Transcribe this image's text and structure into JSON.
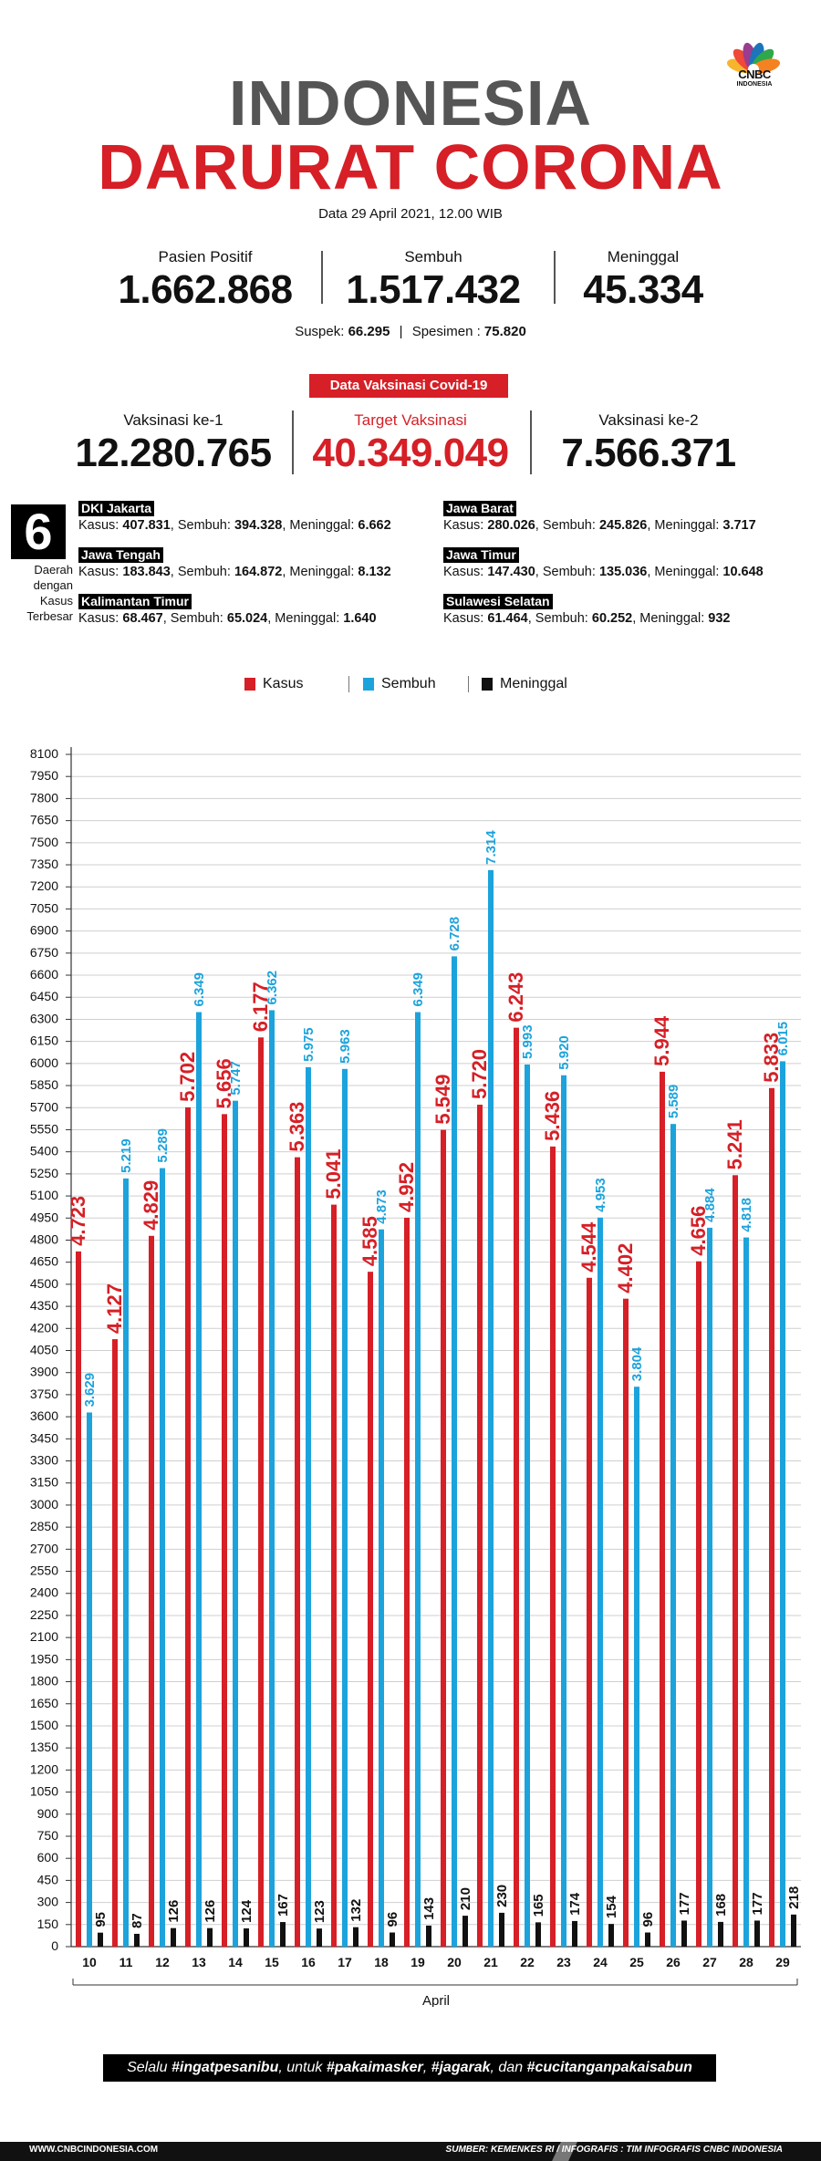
{
  "brand": {
    "name": "CNBC",
    "sub": "INDONESIA"
  },
  "header": {
    "title_line1": "INDONESIA",
    "title_line2": "DARURAT CORONA",
    "date": "Data 29 April 2021, 12.00 WIB"
  },
  "stats": [
    {
      "label": "Pasien Positif",
      "value": "1.662.868"
    },
    {
      "label": "Sembuh",
      "value": "1.517.432"
    },
    {
      "label": "Meninggal",
      "value": "45.334"
    }
  ],
  "suspek": {
    "label": "Suspek:",
    "value": "66.295",
    "sep": "|",
    "spesimen_label": "Spesimen :",
    "spesimen_value": "75.820"
  },
  "vaksinasi": {
    "badge": "Data Vaksinasi Covid-19",
    "items": [
      {
        "label": "Vaksinasi ke-1",
        "value": "12.280.765"
      },
      {
        "label": "Target Vaksinasi",
        "value": "40.349.049"
      },
      {
        "label": "Vaksinasi ke-2",
        "value": "7.566.371"
      }
    ]
  },
  "regions": {
    "count": "6",
    "caption": [
      "Daerah",
      "dengan",
      "Kasus",
      "Terbesar"
    ],
    "items": [
      {
        "name": "DKI Jakarta",
        "kasus": "407.831",
        "sembuh": "394.328",
        "meninggal": "6.662"
      },
      {
        "name": "Jawa Barat",
        "kasus": "280.026",
        "sembuh": "245.826",
        "meninggal": "3.717"
      },
      {
        "name": "Jawa Tengah",
        "kasus": "183.843",
        "sembuh": "164.872",
        "meninggal": "8.132"
      },
      {
        "name": "Jawa Timur",
        "kasus": "147.430",
        "sembuh": "135.036",
        "meninggal": "10.648"
      },
      {
        "name": "Kalimantan Timur",
        "kasus": "68.467",
        "sembuh": "65.024",
        "meninggal": "1.640"
      },
      {
        "name": "Sulawesi Selatan",
        "kasus": "61.464",
        "sembuh": "60.252",
        "meninggal": "932"
      }
    ],
    "labels": {
      "kasus": "Kasus:",
      "sembuh": "Sembuh:",
      "meninggal": "Meninggal:"
    }
  },
  "chart_data": {
    "type": "bar",
    "categories": [
      "10",
      "11",
      "12",
      "13",
      "14",
      "15",
      "16",
      "17",
      "18",
      "19",
      "20",
      "21",
      "22",
      "23",
      "24",
      "25",
      "26",
      "27",
      "28",
      "29"
    ],
    "series": [
      {
        "name": "Kasus",
        "color": "#d61f26",
        "values": [
          4723,
          4127,
          4829,
          5702,
          5656,
          6177,
          5363,
          5041,
          4585,
          4952,
          5549,
          5720,
          6243,
          5436,
          4544,
          4402,
          5944,
          4656,
          5241,
          5833
        ],
        "labels": [
          "4.723",
          "4.127",
          "4.829",
          "5.702",
          "5.656",
          "6.177",
          "5.363",
          "5.041",
          "4.585",
          "4.952",
          "5.549",
          "5.720",
          "6.243",
          "5.436",
          "4.544",
          "4.402",
          "5.944",
          "4.656",
          "5.241",
          "5.833"
        ]
      },
      {
        "name": "Sembuh",
        "color": "#1ca3dc",
        "values": [
          3629,
          5219,
          5289,
          6349,
          5747,
          6362,
          5975,
          5963,
          4873,
          6349,
          6728,
          7314,
          5993,
          5920,
          4953,
          3804,
          5589,
          4884,
          4818,
          6015
        ],
        "labels": [
          "3.629",
          "5.219",
          "5.289",
          "6.349",
          "5.747",
          "6.362",
          "5.975",
          "5.963",
          "4.873",
          "6.349",
          "6.728",
          "7.314",
          "5.993",
          "5.920",
          "4.953",
          "3.804",
          "5.589",
          "4.884",
          "4.818",
          "6.015"
        ]
      },
      {
        "name": "Meninggal",
        "color": "#111111",
        "values": [
          95,
          87,
          126,
          126,
          124,
          167,
          123,
          132,
          96,
          143,
          210,
          230,
          165,
          174,
          154,
          96,
          177,
          168,
          177,
          218
        ],
        "labels": [
          "95",
          "87",
          "126",
          "126",
          "124",
          "167",
          "123",
          "132",
          "96",
          "143",
          "210",
          "230",
          "165",
          "174",
          "154",
          "96",
          "177",
          "168",
          "177",
          "218"
        ]
      }
    ],
    "yticks": [
      0,
      150,
      300,
      450,
      600,
      750,
      900,
      1050,
      1200,
      1350,
      1500,
      1650,
      1800,
      1950,
      2100,
      2250,
      2400,
      2550,
      2700,
      2850,
      3000,
      3150,
      3300,
      3450,
      3600,
      3750,
      3900,
      4050,
      4200,
      4350,
      4500,
      4650,
      4800,
      4950,
      5100,
      5250,
      5400,
      5550,
      5700,
      5850,
      6000,
      6150,
      6300,
      6450,
      6600,
      6750,
      6900,
      7050,
      7200,
      7350,
      7500,
      7650,
      7800,
      7950,
      8100
    ],
    "ylim": [
      0,
      8100
    ],
    "xlabel": "April",
    "ylabel": "",
    "grid": true,
    "legend": "top-center"
  },
  "footer": {
    "slogan_parts": [
      "Selalu ",
      "#ingatpesanibu",
      ", untuk ",
      "#pakaimasker",
      ", ",
      "#jagarak",
      ", dan ",
      "#cucitanganpakaisabun"
    ],
    "website": "WWW.CNBCINDONESIA.COM",
    "source": "SUMBER: KEMENKES RI / INFOGRAFIS : TIM INFOGRAFIS CNBC INDONESIA"
  }
}
